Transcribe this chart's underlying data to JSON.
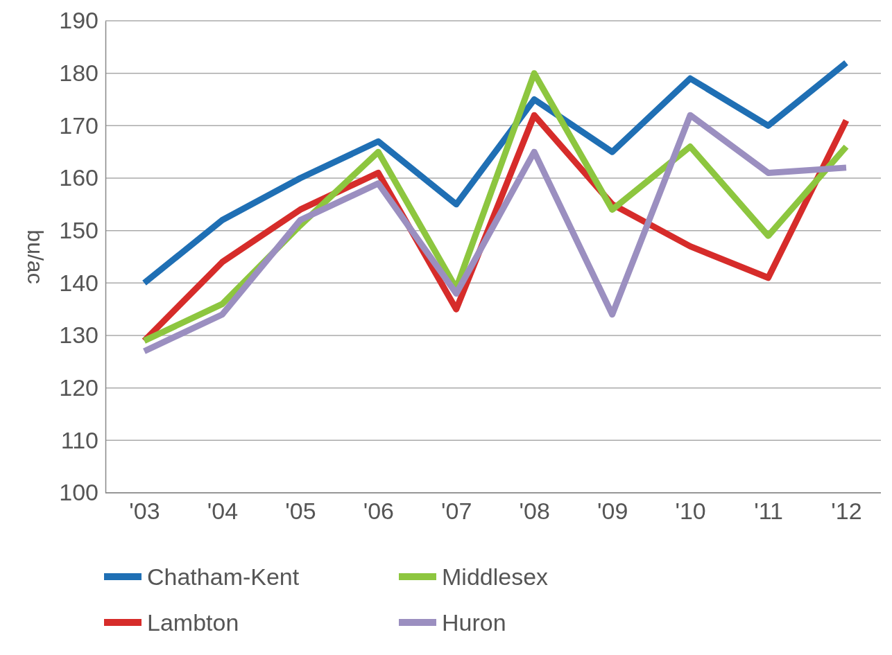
{
  "chart_data": {
    "type": "line",
    "ylabel": "bu/ac",
    "categories": [
      "'03",
      "'04",
      "'05",
      "'06",
      "'07",
      "'08",
      "'09",
      "'10",
      "'11",
      "'12"
    ],
    "series": [
      {
        "name": "Chatham-Kent",
        "color": "#1f6fb4",
        "values": [
          140,
          152,
          160,
          167,
          155,
          175,
          165,
          179,
          170,
          182
        ]
      },
      {
        "name": "Lambton",
        "color": "#d62c2a",
        "values": [
          129,
          144,
          154,
          161,
          135,
          172,
          155,
          147,
          141,
          171
        ]
      },
      {
        "name": "Middlesex",
        "color": "#8dc63f",
        "values": [
          129,
          136,
          151,
          165,
          139,
          180,
          154,
          166,
          149,
          166
        ]
      },
      {
        "name": "Huron",
        "color": "#9b8fc0",
        "values": [
          127,
          134,
          152,
          159,
          138,
          165,
          134,
          172,
          161,
          162
        ]
      }
    ],
    "ylim": [
      100,
      190
    ],
    "yticks": [
      100,
      110,
      120,
      130,
      140,
      150,
      160,
      170,
      180,
      190
    ],
    "grid": "y",
    "legend": "bottom",
    "marker": "none",
    "line_style": "solid"
  }
}
